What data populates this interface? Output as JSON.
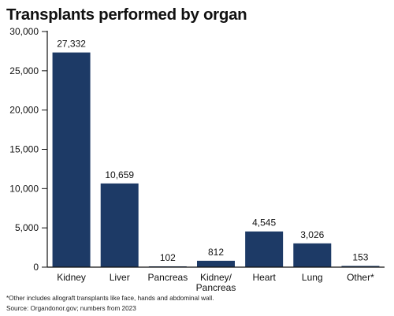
{
  "chart_data": {
    "type": "bar",
    "title": "Transplants performed by organ",
    "categories": [
      [
        "Kidney"
      ],
      [
        "Liver"
      ],
      [
        "Pancreas"
      ],
      [
        "Kidney/",
        "Pancreas"
      ],
      [
        "Heart"
      ],
      [
        "Lung"
      ],
      [
        "Other*"
      ]
    ],
    "values": [
      27332,
      10659,
      102,
      812,
      4545,
      3026,
      153
    ],
    "value_labels": [
      "27,332",
      "10,659",
      "102",
      "812",
      "4,545",
      "3,026",
      "153"
    ],
    "y_ticks": [
      0,
      5000,
      10000,
      15000,
      20000,
      25000,
      30000
    ],
    "y_tick_labels": [
      "0",
      "5,000",
      "10,000",
      "15,000",
      "20,000",
      "25,000",
      "30,000"
    ],
    "ylim": [
      0,
      30000
    ],
    "xlabel": "",
    "ylabel": "",
    "grid": false,
    "bar_color": "#1d3a66",
    "axis_color": "#111111"
  },
  "footnote": "*Other includes allograft transplants like face, hands and abdominal wall.",
  "source": "Source: Organdonor.gov; numbers from 2023"
}
